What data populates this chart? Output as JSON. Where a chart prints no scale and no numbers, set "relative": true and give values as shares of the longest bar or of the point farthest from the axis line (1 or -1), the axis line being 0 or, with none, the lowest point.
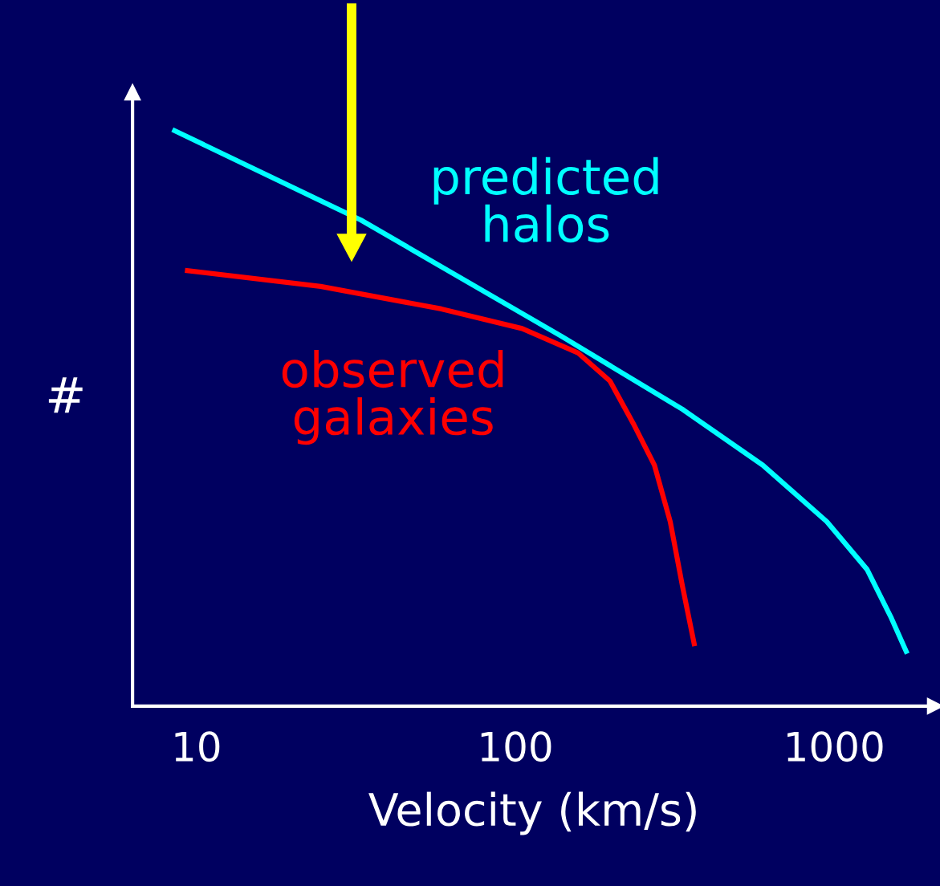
{
  "chart_data": {
    "type": "line",
    "relative": true,
    "log": "x",
    "xlabel": "Velocity (km/s)",
    "ylabel": "#",
    "xlim": [
      6.3,
      2075
    ],
    "xticks": [
      10,
      100,
      1000
    ],
    "legend": false,
    "grid": false,
    "marker": "none",
    "line_style": "solid",
    "tick_labels": "x",
    "series": [
      {
        "name": "predicted halos",
        "color": "#00ffff",
        "x": [
          8.4,
          32.8,
          140,
          334,
          597,
          948,
          1268,
          1510,
          1694
        ],
        "values": [
          1.0,
          0.843,
          0.641,
          0.515,
          0.418,
          0.32,
          0.237,
          0.153,
          0.091
        ]
      },
      {
        "name": "observed galaxies",
        "color": "#ff0000",
        "x": [
          9.2,
          24.5,
          58.6,
          105,
          157,
          198,
          236,
          273,
          306,
          334,
          365
        ],
        "values": [
          0.756,
          0.728,
          0.689,
          0.655,
          0.613,
          0.564,
          0.487,
          0.418,
          0.32,
          0.209,
          0.104
        ]
      }
    ]
  }
}
